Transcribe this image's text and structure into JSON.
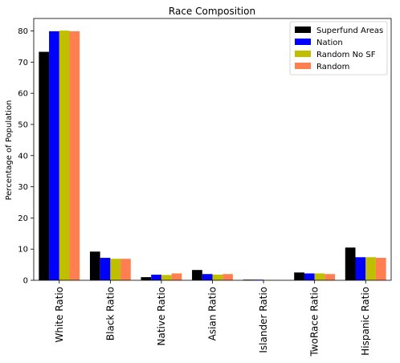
{
  "chart_data": {
    "type": "bar",
    "title": "Race Composition",
    "xlabel": "",
    "ylabel": "Percentage of Population",
    "ylim": [
      0,
      84
    ],
    "yticks": [
      0,
      10,
      20,
      30,
      40,
      50,
      60,
      70,
      80
    ],
    "grid": false,
    "legend_position": "top-right",
    "categories": [
      "White Ratio",
      "Black Ratio",
      "Native Ratio",
      "Asian Ratio",
      "Islander Ratio",
      "TwoRace Ratio",
      "Hispanic Ratio"
    ],
    "series": [
      {
        "name": "Superfund Areas",
        "color": "#000000",
        "values": [
          73.3,
          9.2,
          1.0,
          3.3,
          0.2,
          2.5,
          10.5
        ]
      },
      {
        "name": "Nation",
        "color": "#0000ff",
        "values": [
          79.9,
          7.2,
          1.8,
          2.0,
          0.2,
          2.2,
          7.4
        ]
      },
      {
        "name": "Random No SF",
        "color": "#bfbf00",
        "values": [
          80.1,
          6.9,
          1.7,
          1.8,
          0.1,
          2.2,
          7.4
        ]
      },
      {
        "name": "Random",
        "color": "#ff7f50",
        "values": [
          79.9,
          6.9,
          2.2,
          2.0,
          0.1,
          2.0,
          7.2
        ]
      }
    ]
  }
}
